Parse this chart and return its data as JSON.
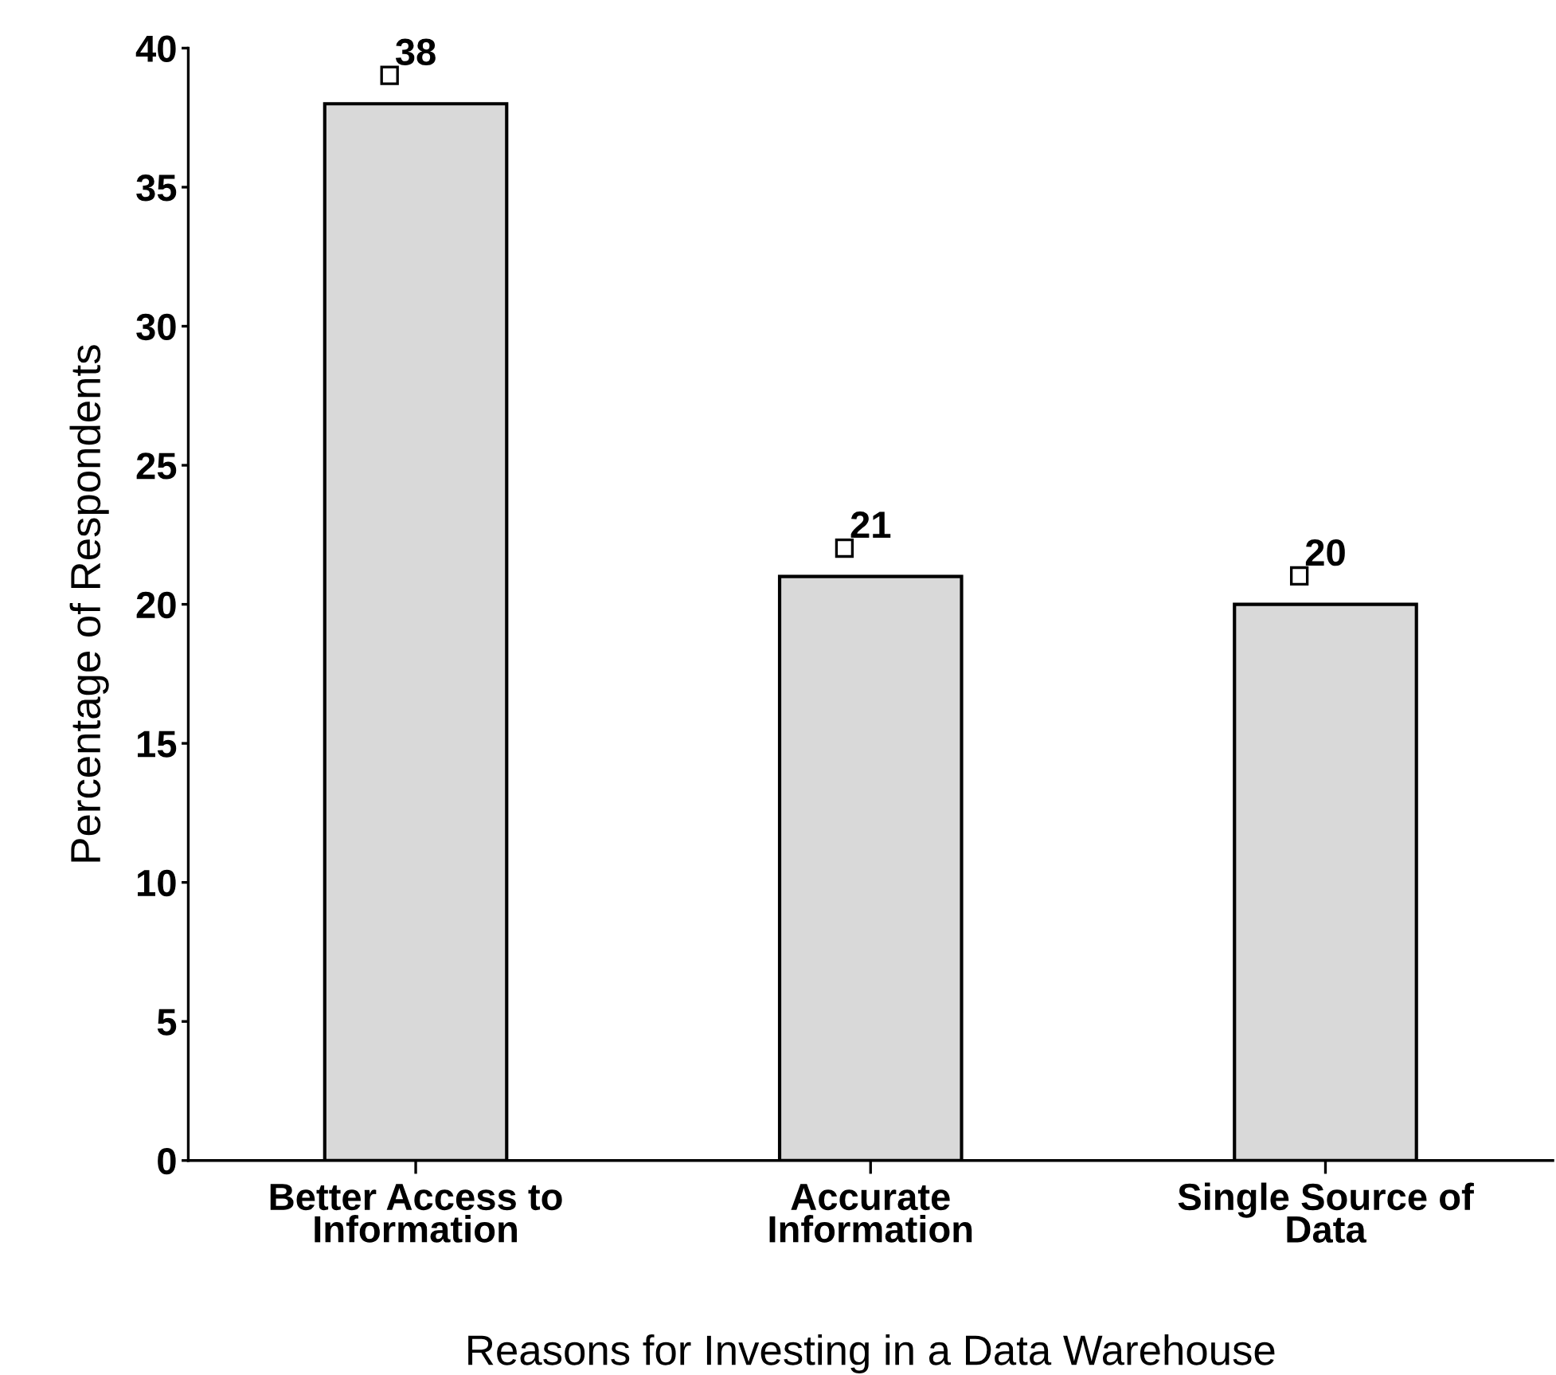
{
  "chart_data": {
    "type": "bar",
    "categories": [
      "Better Access to\nInformation",
      "Accurate\nInformation",
      "Single Source of\nData"
    ],
    "values": [
      38,
      21,
      20
    ],
    "color": "#d9d9d9",
    "xlabel": "Reasons for Investing in a Data Warehouse",
    "ylabel": "Percentage of Respondents",
    "ylim": [
      0,
      40
    ],
    "yticks": [
      0,
      5,
      10,
      15,
      20,
      25,
      30,
      35,
      40
    ],
    "data_labels": true,
    "grid": false,
    "legend": false
  }
}
